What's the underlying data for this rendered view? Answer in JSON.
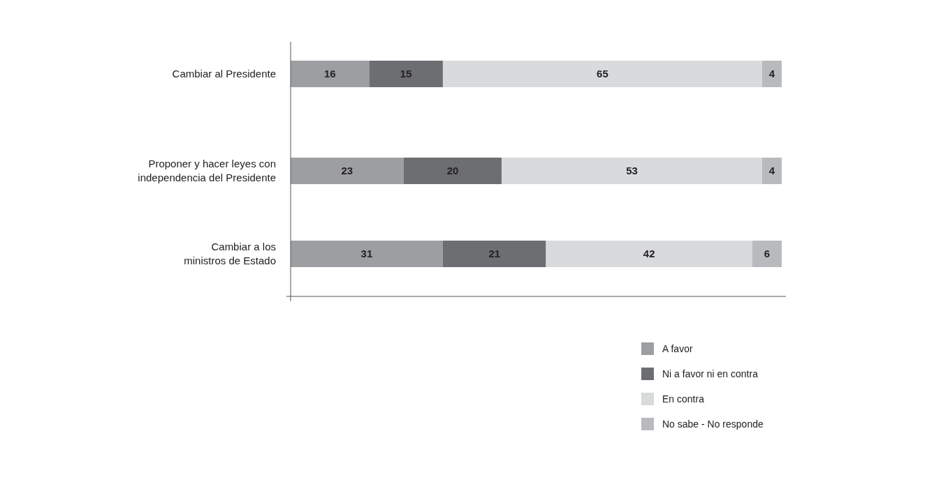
{
  "chart_data": {
    "type": "bar",
    "orientation": "horizontal",
    "stacked": true,
    "data_labels": true,
    "legend": "bottom right",
    "tick_labels": "y",
    "categories": [
      "Cambiar al Presidente",
      "Proponer y hacer leyes con\nindependencia del Presidente",
      "Cambiar a los\nministros de Estado"
    ],
    "series": [
      {
        "name": "A favor",
        "color": "#9d9ea2",
        "values": [
          16,
          23,
          31
        ]
      },
      {
        "name": "Ni a favor ni en contra",
        "color": "#6d6e72",
        "values": [
          15,
          20,
          21
        ]
      },
      {
        "name": "En contra",
        "color": "#d9dadc",
        "values": [
          65,
          53,
          42
        ]
      },
      {
        "name": "No sabe - No responde",
        "color": "#b9babd",
        "values": [
          4,
          4,
          6
        ]
      }
    ]
  }
}
